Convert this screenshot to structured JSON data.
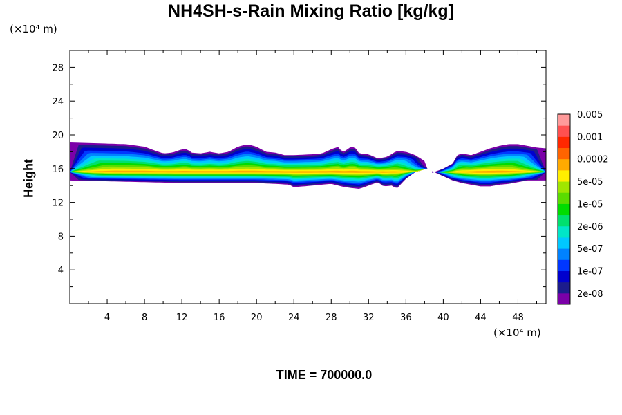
{
  "chart_data": {
    "type": "heatmap",
    "title": "NH4SH-s-Rain Mixing Ratio [kg/kg]",
    "ylabel": "Height",
    "y_unit": "(×10⁴ m)",
    "x_unit": "(×10⁴ m)",
    "footer": "TIME = 700000.0",
    "xlim": [
      0,
      51
    ],
    "ylim": [
      0,
      30
    ],
    "x_ticks": [
      "4",
      "8",
      "12",
      "16",
      "20",
      "24",
      "28",
      "32",
      "36",
      "40",
      "44",
      "48"
    ],
    "y_ticks": [
      "4",
      "8",
      "12",
      "16",
      "20",
      "24",
      "28"
    ],
    "colorbar": {
      "colors": [
        "#7b00a8",
        "#1c1c8c",
        "#0000cd",
        "#0037ff",
        "#0082ff",
        "#00c8ff",
        "#00e6c8",
        "#00e06e",
        "#00dc00",
        "#5adc00",
        "#a0e600",
        "#ffee00",
        "#ffaa00",
        "#ff6400",
        "#ff2800",
        "#ff5050",
        "#ff9a9a"
      ],
      "labels": [
        "2e-08",
        "1e-07",
        "5e-07",
        "2e-06",
        "1e-05",
        "5e-05",
        "0.0002",
        "0.001",
        "0.005"
      ]
    },
    "cloud_band": {
      "segments": [
        {
          "x_start": 0,
          "x_end": 38.3,
          "top": [
            [
              0,
              19.1
            ],
            [
              6,
              18.9
            ],
            [
              8,
              18.6
            ],
            [
              9,
              18.2
            ],
            [
              10,
              17.8
            ],
            [
              11,
              17.9
            ],
            [
              12,
              18.3
            ],
            [
              12.6,
              18.3
            ],
            [
              13,
              17.9
            ],
            [
              14,
              17.8
            ],
            [
              15,
              18.0
            ],
            [
              16,
              17.8
            ],
            [
              17,
              18.0
            ],
            [
              18,
              18.6
            ],
            [
              19,
              18.9
            ],
            [
              20,
              18.6
            ],
            [
              21,
              18.0
            ],
            [
              22,
              17.9
            ],
            [
              23,
              17.6
            ],
            [
              24,
              17.6
            ],
            [
              26,
              17.7
            ],
            [
              27,
              17.8
            ],
            [
              28,
              18.3
            ],
            [
              28.8,
              18.6
            ],
            [
              29.2,
              17.9
            ],
            [
              30,
              18.5
            ],
            [
              30.5,
              18.6
            ],
            [
              31,
              17.8
            ],
            [
              32,
              17.7
            ],
            [
              33,
              17.2
            ],
            [
              34,
              17.4
            ],
            [
              35,
              18.1
            ],
            [
              36,
              18.0
            ],
            [
              37,
              17.6
            ],
            [
              38,
              16.9
            ],
            [
              38.3,
              16.0
            ]
          ],
          "bottom": [
            [
              0,
              14.6
            ],
            [
              4,
              14.5
            ],
            [
              8,
              14.4
            ],
            [
              12,
              14.3
            ],
            [
              16,
              14.3
            ],
            [
              20,
              14.3
            ],
            [
              22,
              14.2
            ],
            [
              23.5,
              14.1
            ],
            [
              24,
              13.8
            ],
            [
              26,
              14.0
            ],
            [
              28,
              14.2
            ],
            [
              29.5,
              13.8
            ],
            [
              31,
              13.6
            ],
            [
              32,
              14.0
            ],
            [
              33,
              14.4
            ],
            [
              33.6,
              13.9
            ],
            [
              34.5,
              14.0
            ],
            [
              35,
              13.6
            ],
            [
              35.5,
              14.2
            ],
            [
              36,
              14.8
            ],
            [
              37,
              15.6
            ],
            [
              38.3,
              16.0
            ]
          ]
        },
        {
          "x_start": 38.8,
          "x_end": 51,
          "top": [
            [
              38.8,
              15.5
            ],
            [
              40,
              16.0
            ],
            [
              41,
              16.6
            ],
            [
              41.5,
              17.6
            ],
            [
              42,
              17.8
            ],
            [
              43,
              17.6
            ],
            [
              44,
              18.0
            ],
            [
              45,
              18.4
            ],
            [
              46,
              18.7
            ],
            [
              47,
              18.9
            ],
            [
              48,
              18.9
            ],
            [
              49,
              18.7
            ],
            [
              50,
              18.5
            ],
            [
              51,
              18.4
            ]
          ],
          "bottom": [
            [
              38.8,
              15.7
            ],
            [
              40,
              15.1
            ],
            [
              41,
              14.6
            ],
            [
              42,
              14.3
            ],
            [
              43,
              14.1
            ],
            [
              44,
              13.9
            ],
            [
              45,
              13.9
            ],
            [
              46,
              14.1
            ],
            [
              47,
              14.2
            ],
            [
              48,
              14.4
            ],
            [
              49,
              14.6
            ],
            [
              50,
              14.6
            ],
            [
              51,
              14.6
            ]
          ]
        }
      ],
      "core_height": 15.6
    }
  }
}
